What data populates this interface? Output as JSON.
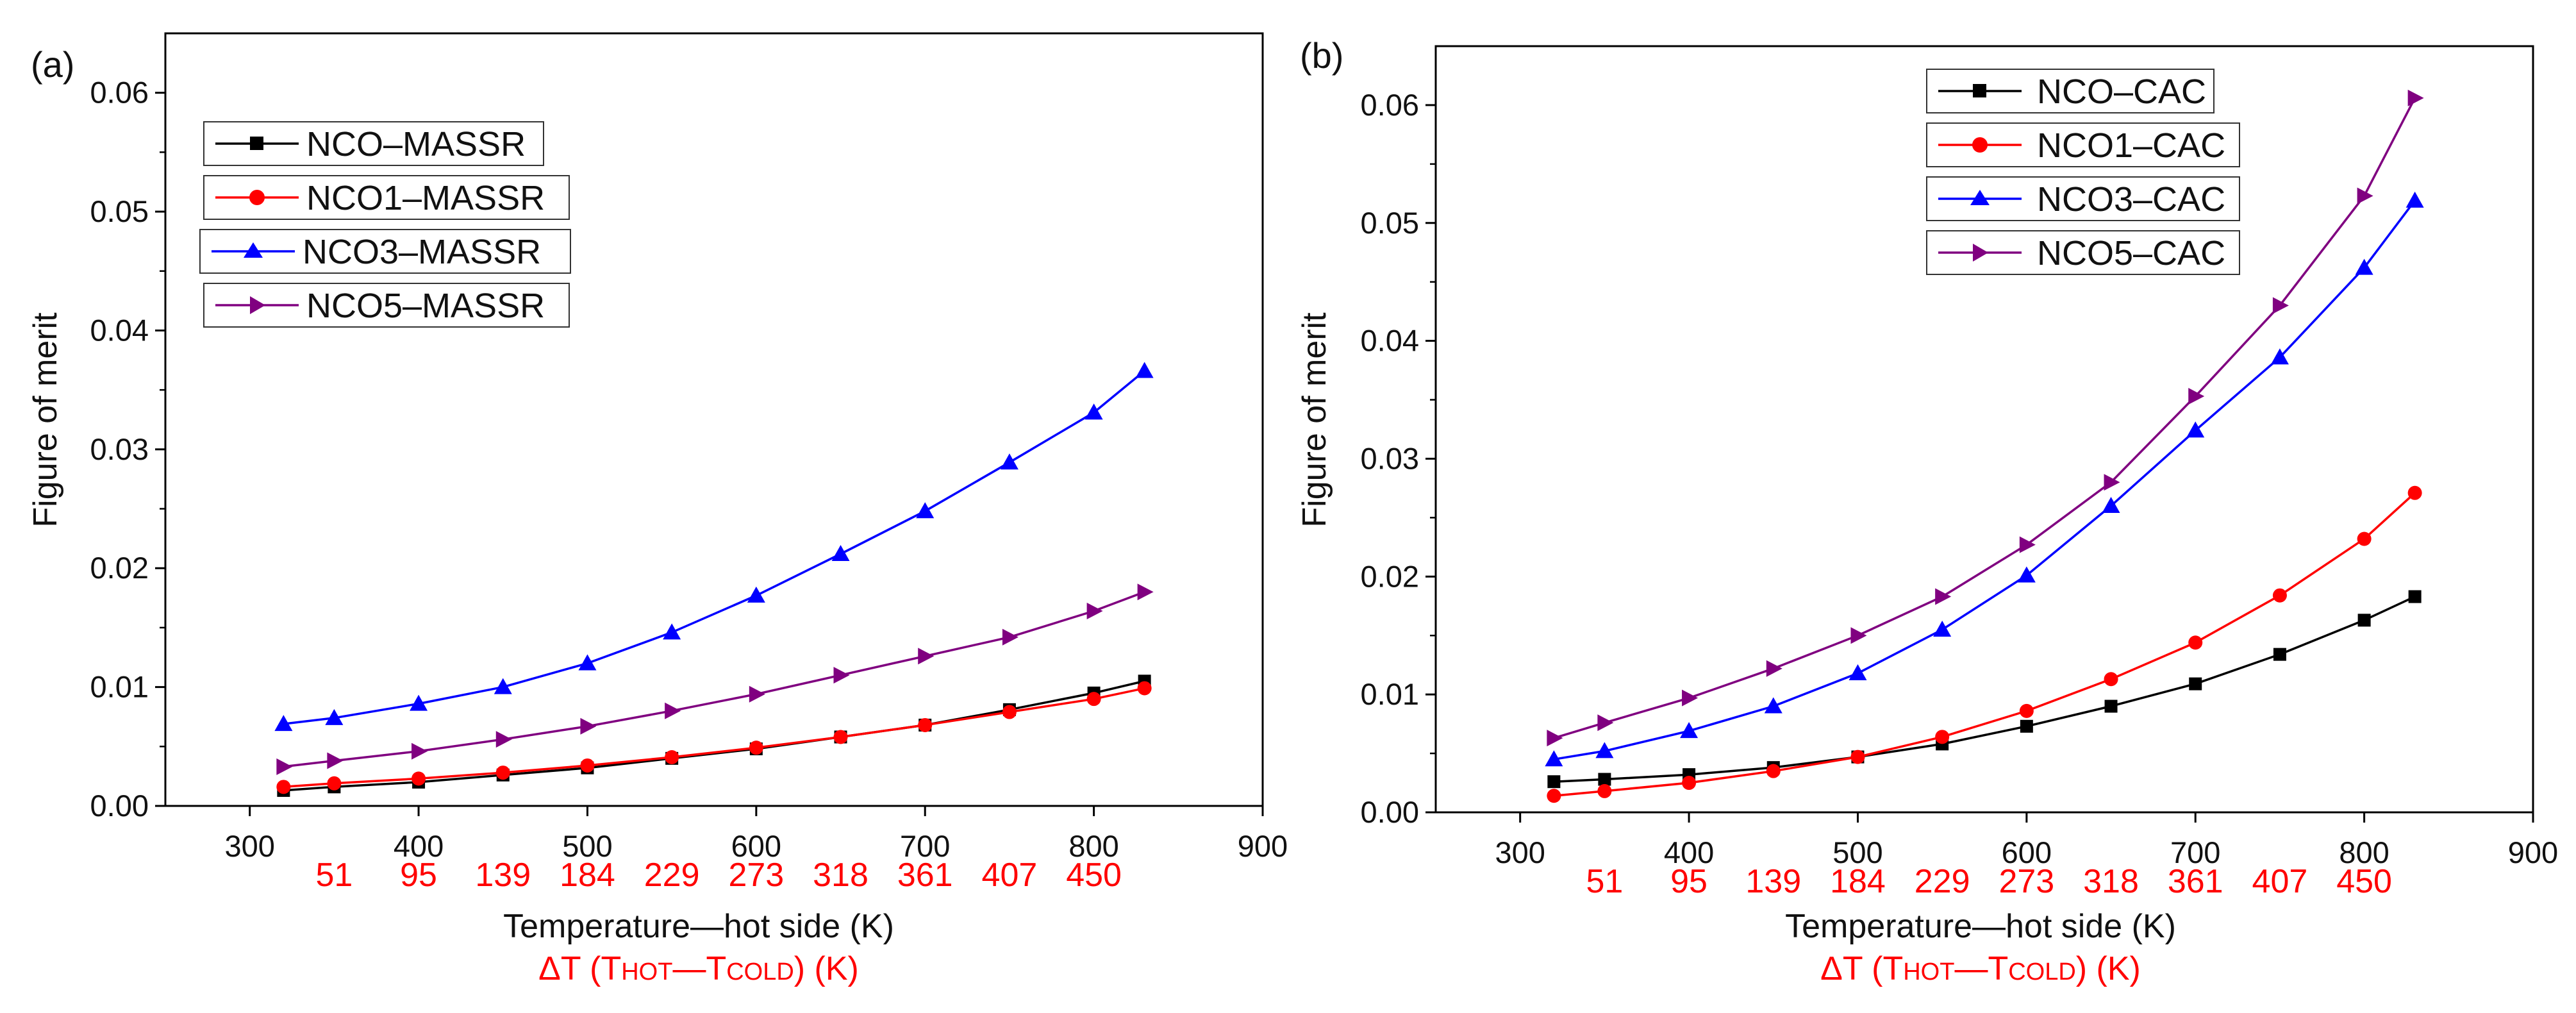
{
  "chart_data": [
    {
      "panel_label": "(a)",
      "type": "line",
      "xlabel": "Temperature—hot side (K)",
      "ylabel": "Figure of merit",
      "xlim": [
        250,
        900
      ],
      "ylim": [
        0,
        0.065
      ],
      "x_ticks": [
        "300",
        "400",
        "500",
        "600",
        "700",
        "800",
        "900"
      ],
      "y_ticks": [
        "0.00",
        "0.01",
        "0.02",
        "0.03",
        "0.04",
        "0.05",
        "0.06"
      ],
      "secondary_axis": {
        "title_parts": {
          "prefix": "ΔT (T",
          "hot": "HOT",
          "dash": "—",
          "t": "T",
          "cold": "COLD",
          "suffix": ") (K)"
        },
        "positions": [
          350,
          400,
          450,
          500,
          550,
          600,
          650,
          700,
          750,
          800
        ],
        "labels": [
          "51",
          "95",
          "139",
          "184",
          "229",
          "273",
          "318",
          "361",
          "407",
          "450"
        ],
        "color": "#ff0000"
      },
      "x": [
        320,
        350,
        400,
        450,
        500,
        550,
        600,
        650,
        700,
        750,
        800,
        830
      ],
      "series": [
        {
          "name": "NCO–MASSR",
          "color": "#000000",
          "marker": "square",
          "values": [
            0.0013,
            0.0016,
            0.002,
            0.0026,
            0.0032,
            0.004,
            0.0048,
            0.0058,
            0.0068,
            0.0081,
            0.0095,
            0.0105
          ]
        },
        {
          "name": "NCO1–MASSR",
          "color": "#ff0000",
          "marker": "circle",
          "values": [
            0.0016,
            0.0019,
            0.0023,
            0.0028,
            0.0034,
            0.0041,
            0.0049,
            0.0058,
            0.0068,
            0.0079,
            0.009,
            0.0099
          ]
        },
        {
          "name": "NCO3–MASSR",
          "color": "#0000ff",
          "marker": "triangle-up",
          "values": [
            0.0069,
            0.0074,
            0.0086,
            0.01,
            0.012,
            0.0146,
            0.0177,
            0.0212,
            0.0248,
            0.0289,
            0.0331,
            0.0366
          ]
        },
        {
          "name": "NCO5–MASSR",
          "color": "#800080",
          "marker": "triangle-right",
          "values": [
            0.0033,
            0.0038,
            0.0046,
            0.0056,
            0.0067,
            0.008,
            0.0094,
            0.011,
            0.0126,
            0.0142,
            0.0164,
            0.018
          ]
        }
      ]
    },
    {
      "panel_label": "(b)",
      "type": "line",
      "xlabel": "Temperature—hot side (K)",
      "ylabel": "Figure of merit",
      "xlim": [
        250,
        900
      ],
      "ylim": [
        0,
        0.065
      ],
      "x_ticks": [
        "300",
        "400",
        "500",
        "600",
        "700",
        "800",
        "900"
      ],
      "y_ticks": [
        "0.00",
        "0.01",
        "0.02",
        "0.03",
        "0.04",
        "0.05",
        "0.06"
      ],
      "secondary_axis": {
        "title_parts": {
          "prefix": "ΔT (T",
          "hot": "HOT",
          "dash": "—",
          "t": "T",
          "cold": "COLD",
          "suffix": ") (K)"
        },
        "positions": [
          350,
          400,
          450,
          500,
          550,
          600,
          650,
          700,
          750,
          800
        ],
        "labels": [
          "51",
          "95",
          "139",
          "184",
          "229",
          "273",
          "318",
          "361",
          "407",
          "450"
        ],
        "color": "#ff0000"
      },
      "x": [
        320,
        350,
        400,
        450,
        500,
        550,
        600,
        650,
        700,
        750,
        800,
        830
      ],
      "series": [
        {
          "name": "NCO–CAC",
          "color": "#000000",
          "marker": "square",
          "values": [
            0.0026,
            0.0028,
            0.0032,
            0.0038,
            0.0047,
            0.0058,
            0.0073,
            0.009,
            0.0109,
            0.0134,
            0.0163,
            0.0183
          ]
        },
        {
          "name": "NCO1–CAC",
          "color": "#ff0000",
          "marker": "circle",
          "values": [
            0.0014,
            0.0018,
            0.0025,
            0.0035,
            0.0047,
            0.0064,
            0.0086,
            0.0113,
            0.0144,
            0.0184,
            0.0232,
            0.0271
          ]
        },
        {
          "name": "NCO3–CAC",
          "color": "#0000ff",
          "marker": "triangle-up",
          "values": [
            0.0045,
            0.0052,
            0.0069,
            0.009,
            0.0118,
            0.0155,
            0.0201,
            0.026,
            0.0324,
            0.0386,
            0.0462,
            0.0519
          ]
        },
        {
          "name": "NCO5–CAC",
          "color": "#800080",
          "marker": "triangle-right",
          "values": [
            0.0063,
            0.0076,
            0.0097,
            0.0122,
            0.015,
            0.0183,
            0.0227,
            0.028,
            0.0353,
            0.043,
            0.0523,
            0.0606
          ]
        }
      ]
    }
  ]
}
